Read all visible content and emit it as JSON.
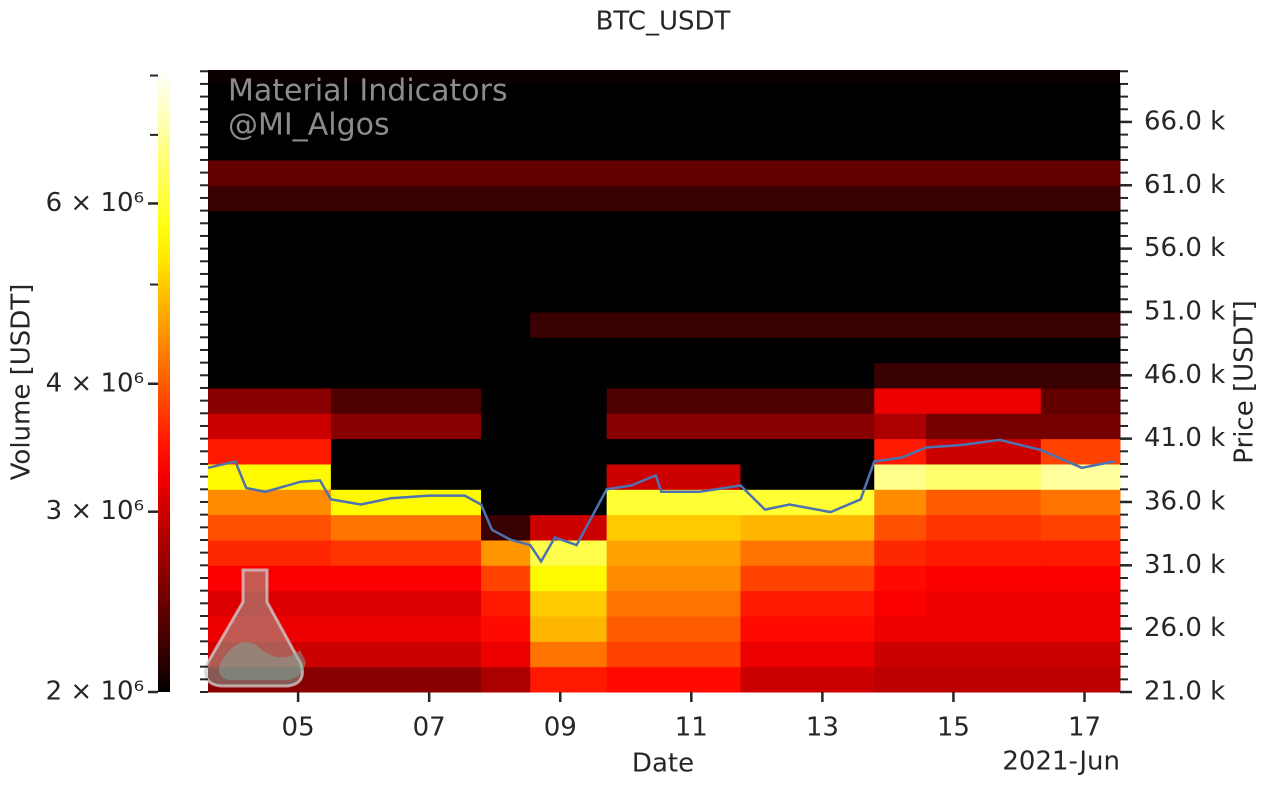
{
  "chart_data": {
    "type": "heatmap",
    "title": "BTC_USDT",
    "x_label": "Date",
    "x_offset_label": "2021-Jun",
    "y_label": "Price [USDT]",
    "colorbar_label": "Volume [USDT]",
    "watermark": [
      "Material Indicators",
      "@MI_Algos"
    ],
    "xlim": [
      "2021-06-03T15:00",
      "2021-06-17T13:00"
    ],
    "xticks": [
      {
        "value": "2021-06-05T00:00",
        "label": "05"
      },
      {
        "value": "2021-06-07T00:00",
        "label": "07"
      },
      {
        "value": "2021-06-09T00:00",
        "label": "09"
      },
      {
        "value": "2021-06-11T00:00",
        "label": "11"
      },
      {
        "value": "2021-06-13T00:00",
        "label": "13"
      },
      {
        "value": "2021-06-15T00:00",
        "label": "15"
      },
      {
        "value": "2021-06-17T00:00",
        "label": "17"
      }
    ],
    "ylim": [
      21000,
      70100
    ],
    "yticks": [
      {
        "value": 21000,
        "label": "21.0 k"
      },
      {
        "value": 26000,
        "label": "26.0 k"
      },
      {
        "value": 31000,
        "label": "31.0 k"
      },
      {
        "value": 36000,
        "label": "36.0 k"
      },
      {
        "value": 41000,
        "label": "41.0 k"
      },
      {
        "value": 46000,
        "label": "46.0 k"
      },
      {
        "value": 51000,
        "label": "51.0 k"
      },
      {
        "value": 56000,
        "label": "56.0 k"
      },
      {
        "value": 61000,
        "label": "61.0 k"
      },
      {
        "value": 66000,
        "label": "66.0 k"
      }
    ],
    "y_minor_step": 1000,
    "x_bins": [
      "2021-06-03T15:00",
      "2021-06-05T12:00",
      "2021-06-07T19:00",
      "2021-06-08T13:00",
      "2021-06-09T17:00",
      "2021-06-11T18:00",
      "2021-06-13T19:00",
      "2021-06-14T14:00",
      "2021-06-16T08:00",
      "2021-06-17T13:00"
    ],
    "y_bins": [
      21000,
      23000,
      25000,
      27000,
      29000,
      31000,
      33000,
      35000,
      37000,
      39000,
      41000,
      43000,
      45000,
      47000,
      49000,
      51000,
      53000,
      55000,
      57000,
      59000,
      61000,
      63000,
      65000,
      67000,
      69000
    ],
    "z": [
      [
        2600000,
        2600000,
        2800000,
        3500000,
        3400000,
        3000000,
        2900000,
        2900000,
        2900000
      ],
      [
        3000000,
        3000000,
        3200000,
        4200000,
        3800000,
        3200000,
        3000000,
        3000000,
        3000000
      ],
      [
        3200000,
        3200000,
        3400000,
        4800000,
        4000000,
        3400000,
        3200000,
        3200000,
        3200000
      ],
      [
        3100000,
        3100000,
        3500000,
        5000000,
        4200000,
        3500000,
        3300000,
        3200000,
        3200000
      ],
      [
        3300000,
        3300000,
        3800000,
        5500000,
        4400000,
        3800000,
        3400000,
        3300000,
        3300000
      ],
      [
        3600000,
        3700000,
        4500000,
        6200000,
        4600000,
        4200000,
        3600000,
        3500000,
        3500000
      ],
      [
        3900000,
        4200000,
        2200000,
        3000000,
        5000000,
        4800000,
        3900000,
        3700000,
        3800000
      ],
      [
        4400000,
        5500000,
        1800000,
        1800000,
        6000000,
        6000000,
        4400000,
        4000000,
        4200000
      ],
      [
        5500000,
        2000000,
        1500000,
        1500000,
        3000000,
        2000000,
        6800000,
        6500000,
        7000000
      ],
      [
        3500000,
        1500000,
        1200000,
        1200000,
        1800000,
        1500000,
        3500000,
        3000000,
        3800000
      ],
      [
        3000000,
        2600000,
        2000000,
        2000000,
        2600000,
        2600000,
        2800000,
        2500000,
        2500000
      ],
      [
        2600000,
        2300000,
        2000000,
        2000000,
        2300000,
        2300000,
        3200000,
        3200000,
        2400000
      ],
      [
        2000000,
        2000000,
        1800000,
        1800000,
        2000000,
        2000000,
        2200000,
        2200000,
        2200000
      ],
      [
        1600000,
        1600000,
        1600000,
        1600000,
        1600000,
        1600000,
        1600000,
        1600000,
        1600000
      ],
      [
        1800000,
        1800000,
        1800000,
        2200000,
        2200000,
        2200000,
        2200000,
        2200000,
        2200000
      ],
      [
        1500000,
        1500000,
        1500000,
        1500000,
        1500000,
        1500000,
        1500000,
        1500000,
        1500000
      ],
      [
        1400000,
        1400000,
        1400000,
        1400000,
        1400000,
        1400000,
        1400000,
        1400000,
        1400000
      ],
      [
        1500000,
        1500000,
        1500000,
        1500000,
        1500000,
        1500000,
        1500000,
        1500000,
        1500000
      ],
      [
        1400000,
        1400000,
        1400000,
        1400000,
        1400000,
        1400000,
        1400000,
        1400000,
        1400000
      ],
      [
        2200000,
        2200000,
        2200000,
        2200000,
        2200000,
        2200000,
        2200000,
        2200000,
        2200000
      ],
      [
        2400000,
        2400000,
        2400000,
        2400000,
        2400000,
        2400000,
        2400000,
        2400000,
        2400000
      ],
      [
        1500000,
        1500000,
        1500000,
        1500000,
        1500000,
        1500000,
        1500000,
        1500000,
        1500000
      ],
      [
        2000000,
        2000000,
        2000000,
        2000000,
        2000000,
        2000000,
        2000000,
        2000000,
        2000000
      ],
      [
        1300000,
        1300000,
        1300000,
        1300000,
        1300000,
        1300000,
        1300000,
        1300000,
        1300000
      ]
    ],
    "colormap": "hot",
    "clim": [
      2000000,
      8100000
    ],
    "cticks": [
      {
        "value": 2000000,
        "label": "2 × 10⁶"
      },
      {
        "value": 3000000,
        "label": "3 × 10⁶"
      },
      {
        "value": 4000000,
        "label": "4 × 10⁶"
      },
      {
        "value": 6000000,
        "label": "6 × 10⁶"
      }
    ],
    "cticks_minor": [
      5000000,
      7000000,
      8000000
    ],
    "price": {
      "color": "#4c72b0",
      "x": [
        "2021-06-03T15:00",
        "2021-06-04T01:00",
        "2021-06-04T05:00",
        "2021-06-04T12:00",
        "2021-06-05T01:00",
        "2021-06-05T08:00",
        "2021-06-05T12:00",
        "2021-06-05T23:00",
        "2021-06-06T10:00",
        "2021-06-07T00:00",
        "2021-06-07T13:00",
        "2021-06-07T19:00",
        "2021-06-07T23:00",
        "2021-06-08T06:00",
        "2021-06-08T13:00",
        "2021-06-08T17:00",
        "2021-06-08T22:00",
        "2021-06-09T06:00",
        "2021-06-09T11:00",
        "2021-06-09T17:00",
        "2021-06-10T02:00",
        "2021-06-10T11:00",
        "2021-06-10T13:00",
        "2021-06-11T03:00",
        "2021-06-11T18:00",
        "2021-06-12T03:00",
        "2021-06-12T12:00",
        "2021-06-13T03:00",
        "2021-06-13T14:00",
        "2021-06-13T19:00",
        "2021-06-14T05:00",
        "2021-06-14T14:00",
        "2021-06-15T03:00",
        "2021-06-15T17:00",
        "2021-06-16T08:00",
        "2021-06-16T23:00",
        "2021-06-17T11:00"
      ],
      "values": [
        38700,
        39200,
        37100,
        36800,
        37600,
        37700,
        36200,
        35800,
        36300,
        36500,
        36500,
        35800,
        33800,
        33000,
        32600,
        31300,
        33200,
        32600,
        34600,
        37000,
        37300,
        38100,
        36800,
        36800,
        37300,
        35400,
        35800,
        35200,
        36200,
        39200,
        39500,
        40300,
        40500,
        40900,
        40100,
        38700,
        39200
      ]
    }
  }
}
